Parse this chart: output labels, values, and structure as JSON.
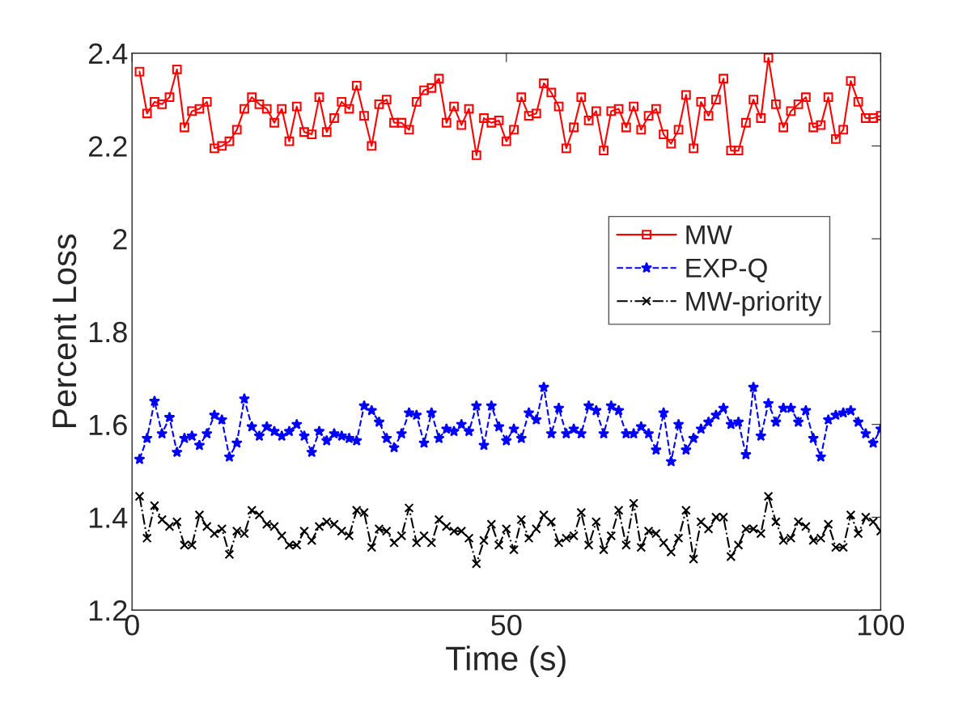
{
  "chart_data": {
    "type": "line",
    "xlabel": "Time (s)",
    "ylabel": "Percent Loss",
    "x": [
      1,
      2,
      3,
      4,
      5,
      6,
      7,
      8,
      9,
      10,
      11,
      12,
      13,
      14,
      15,
      16,
      17,
      18,
      19,
      20,
      21,
      22,
      23,
      24,
      25,
      26,
      27,
      28,
      29,
      30,
      31,
      32,
      33,
      34,
      35,
      36,
      37,
      38,
      39,
      40,
      41,
      42,
      43,
      44,
      45,
      46,
      47,
      48,
      49,
      50,
      51,
      52,
      53,
      54,
      55,
      56,
      57,
      58,
      59,
      60,
      61,
      62,
      63,
      64,
      65,
      66,
      67,
      68,
      69,
      70,
      71,
      72,
      73,
      74,
      75,
      76,
      77,
      78,
      79,
      80,
      81,
      82,
      83,
      84,
      85,
      86,
      87,
      88,
      89,
      90,
      91,
      92,
      93,
      94,
      95,
      96,
      97,
      98,
      99,
      100
    ],
    "xlim": [
      0,
      100
    ],
    "xticks": [
      0,
      50,
      100
    ],
    "ylim": [
      1.2,
      2.4
    ],
    "yticks": [
      1.2,
      1.4,
      1.6,
      1.8,
      {
        "value": 2.0,
        "label": "2"
      },
      2.2,
      2.4
    ],
    "grid": false,
    "legend": "right",
    "series": [
      {
        "name": "MW",
        "color": "#ff0000",
        "marker": "square",
        "line_style": "solid",
        "values": [
          2.36,
          2.27,
          2.295,
          2.29,
          2.305,
          2.365,
          2.24,
          2.275,
          2.28,
          2.295,
          2.195,
          2.2,
          2.21,
          2.235,
          2.28,
          2.305,
          2.29,
          2.28,
          2.25,
          2.28,
          2.21,
          2.285,
          2.23,
          2.225,
          2.305,
          2.23,
          2.26,
          2.295,
          2.28,
          2.33,
          2.265,
          2.2,
          2.29,
          2.3,
          2.25,
          2.25,
          2.235,
          2.295,
          2.32,
          2.325,
          2.345,
          2.25,
          2.285,
          2.245,
          2.28,
          2.18,
          2.26,
          2.25,
          2.255,
          2.21,
          2.235,
          2.305,
          2.265,
          2.27,
          2.335,
          2.315,
          2.285,
          2.195,
          2.24,
          2.305,
          2.255,
          2.275,
          2.19,
          2.275,
          2.28,
          2.24,
          2.285,
          2.235,
          2.265,
          2.28,
          2.225,
          2.205,
          2.235,
          2.31,
          2.195,
          2.295,
          2.265,
          2.3,
          2.345,
          2.19,
          2.19,
          2.25,
          2.3,
          2.26,
          2.39,
          2.29,
          2.24,
          2.275,
          2.29,
          2.305,
          2.24,
          2.245,
          2.305,
          2.215,
          2.235,
          2.34,
          2.295,
          2.26,
          2.26,
          2.265
        ]
      },
      {
        "name": "EXP-Q",
        "color": "#0000ff",
        "marker": "star",
        "line_style": "dashed",
        "values": [
          1.525,
          1.57,
          1.65,
          1.58,
          1.615,
          1.54,
          1.57,
          1.575,
          1.555,
          1.58,
          1.62,
          1.61,
          1.53,
          1.56,
          1.655,
          1.595,
          1.575,
          1.595,
          1.585,
          1.575,
          1.585,
          1.6,
          1.575,
          1.54,
          1.585,
          1.565,
          1.58,
          1.575,
          1.57,
          1.565,
          1.64,
          1.63,
          1.605,
          1.57,
          1.55,
          1.58,
          1.625,
          1.62,
          1.56,
          1.625,
          1.57,
          1.59,
          1.585,
          1.6,
          1.585,
          1.64,
          1.555,
          1.64,
          1.595,
          1.565,
          1.59,
          1.57,
          1.625,
          1.61,
          1.68,
          1.58,
          1.635,
          1.58,
          1.59,
          1.58,
          1.64,
          1.63,
          1.58,
          1.64,
          1.63,
          1.58,
          1.58,
          1.595,
          1.58,
          1.545,
          1.625,
          1.52,
          1.6,
          1.545,
          1.57,
          1.59,
          1.605,
          1.62,
          1.635,
          1.6,
          1.605,
          1.535,
          1.68,
          1.575,
          1.645,
          1.605,
          1.635,
          1.635,
          1.605,
          1.63,
          1.57,
          1.53,
          1.61,
          1.62,
          1.625,
          1.63,
          1.605,
          1.58,
          1.56,
          1.59
        ]
      },
      {
        "name": "MW-priority",
        "color": "#000000",
        "marker": "cross",
        "line_style": "dashdot",
        "values": [
          1.445,
          1.355,
          1.425,
          1.395,
          1.38,
          1.39,
          1.34,
          1.34,
          1.405,
          1.38,
          1.365,
          1.375,
          1.32,
          1.37,
          1.365,
          1.415,
          1.405,
          1.385,
          1.38,
          1.36,
          1.34,
          1.34,
          1.37,
          1.35,
          1.38,
          1.39,
          1.385,
          1.37,
          1.36,
          1.415,
          1.41,
          1.335,
          1.375,
          1.37,
          1.345,
          1.36,
          1.42,
          1.345,
          1.36,
          1.345,
          1.395,
          1.38,
          1.37,
          1.37,
          1.355,
          1.3,
          1.35,
          1.385,
          1.34,
          1.375,
          1.33,
          1.395,
          1.355,
          1.375,
          1.405,
          1.39,
          1.345,
          1.355,
          1.36,
          1.41,
          1.34,
          1.39,
          1.33,
          1.36,
          1.415,
          1.34,
          1.43,
          1.335,
          1.37,
          1.365,
          1.345,
          1.325,
          1.355,
          1.415,
          1.31,
          1.39,
          1.375,
          1.4,
          1.4,
          1.315,
          1.34,
          1.375,
          1.375,
          1.365,
          1.445,
          1.39,
          1.35,
          1.355,
          1.39,
          1.38,
          1.35,
          1.355,
          1.385,
          1.335,
          1.335,
          1.405,
          1.365,
          1.4,
          1.39,
          1.37
        ]
      }
    ]
  }
}
